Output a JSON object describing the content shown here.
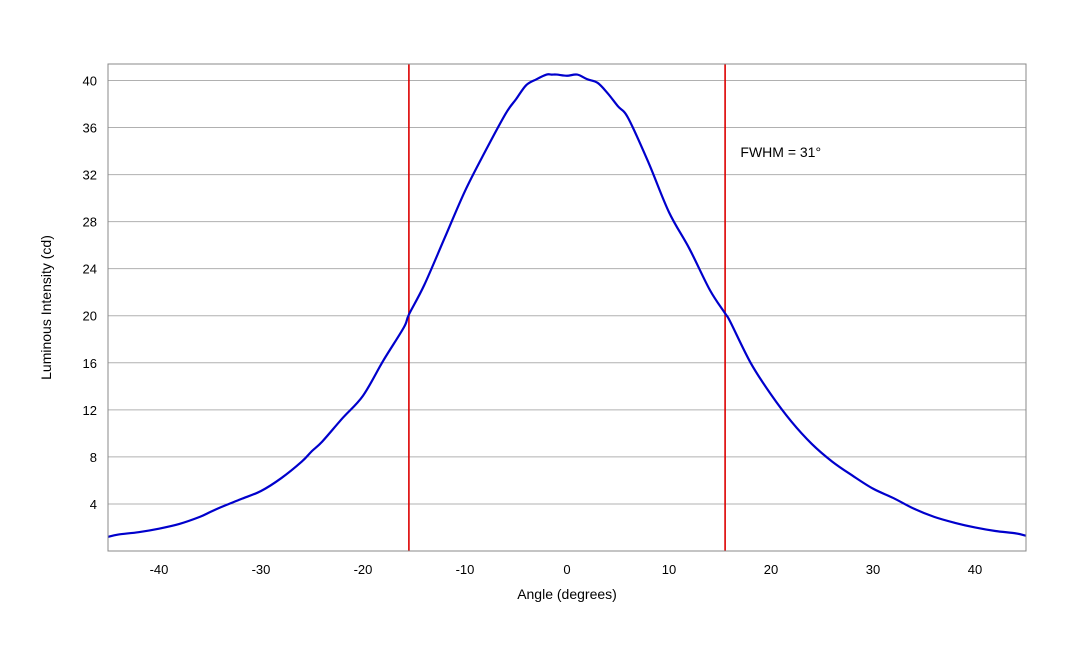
{
  "chart_data": {
    "type": "line",
    "title": "",
    "xlabel": "Angle (degrees)",
    "ylabel": "Luminous Intensity (cd)",
    "xlim": [
      -45,
      45
    ],
    "ylim": [
      0,
      41.4
    ],
    "x_ticks": [
      -40,
      -30,
      -20,
      -10,
      0,
      10,
      20,
      30,
      40
    ],
    "x_tick_labels": [
      "-40",
      "-30",
      "-20",
      "-10",
      "0",
      "10",
      "20",
      "30",
      "40"
    ],
    "y_ticks": [
      4,
      8,
      12,
      16,
      20,
      24,
      28,
      32,
      36,
      40
    ],
    "y_tick_labels": [
      "4",
      "8",
      "12",
      "16",
      "20",
      "24",
      "28",
      "32",
      "36",
      "40"
    ],
    "grid": "horizontal",
    "series": [
      {
        "color": "#0000cc",
        "x": [
          -45,
          -44,
          -42,
          -40,
          -38,
          -36,
          -35,
          -34,
          -32,
          -30,
          -28,
          -26,
          -25,
          -24,
          -22,
          -20,
          -18,
          -16,
          -15.5,
          -14,
          -12,
          -10,
          -8,
          -6,
          -5,
          -4,
          -3,
          -2,
          -1.5,
          -1,
          0,
          1,
          2,
          3,
          4,
          5,
          6,
          8,
          10,
          12,
          14,
          15.5,
          16,
          18,
          20,
          22,
          24,
          26,
          28,
          30,
          32,
          34,
          36,
          38,
          40,
          42,
          44,
          45
        ],
        "y": [
          1.2,
          1.4,
          1.6,
          1.9,
          2.3,
          2.9,
          3.3,
          3.7,
          4.4,
          5.1,
          6.2,
          7.6,
          8.5,
          9.3,
          11.3,
          13.2,
          16.2,
          19.0,
          20.1,
          22.6,
          26.6,
          30.6,
          34.0,
          37.2,
          38.4,
          39.6,
          40.1,
          40.5,
          40.5,
          40.5,
          40.4,
          40.5,
          40.1,
          39.8,
          38.9,
          37.8,
          36.8,
          33.0,
          28.8,
          25.7,
          22.2,
          20.2,
          19.5,
          16.0,
          13.3,
          11.0,
          9.1,
          7.6,
          6.4,
          5.3,
          4.5,
          3.6,
          2.9,
          2.4,
          2.0,
          1.7,
          1.5,
          1.3
        ]
      }
    ],
    "vertical_lines": [
      {
        "x": -15.5,
        "color": "#dd0000"
      },
      {
        "x": 15.5,
        "color": "#dd0000"
      }
    ],
    "annotations": [
      {
        "text": "FWHM = 31°",
        "x": 17.0,
        "y": 33.5
      }
    ],
    "colors": {
      "plot_border": "#888888",
      "grid": "#b0b0b0",
      "background": "#ffffff"
    }
  }
}
